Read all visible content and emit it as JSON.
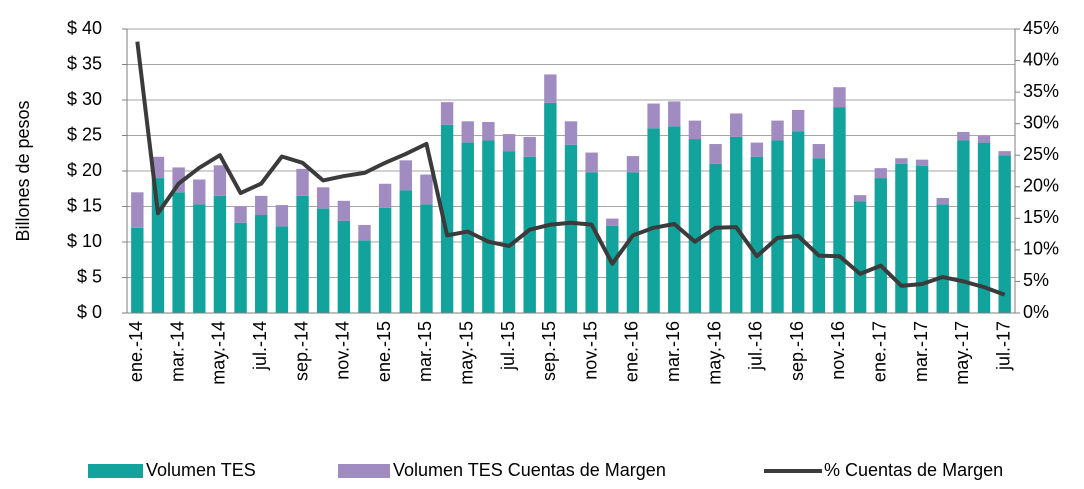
{
  "chart_data": {
    "type": "bar",
    "y_label": "Billones de pesos",
    "categories": [
      "ene.-14",
      null,
      "mar.-14",
      null,
      "may.-14",
      null,
      "jul.-14",
      null,
      "sep.-14",
      null,
      "nov.-14",
      null,
      "ene.-15",
      null,
      "mar.-15",
      null,
      "may.-15",
      null,
      "jul.-15",
      null,
      "sep.-15",
      null,
      "nov.-15",
      null,
      "ene.-16",
      null,
      "mar.-16",
      null,
      "may.-16",
      null,
      "jul.-16",
      null,
      "sep.-16",
      null,
      "nov.-16",
      null,
      "ene.-17",
      null,
      "mar.-17",
      null,
      "may.-17",
      null,
      "jul.-17"
    ],
    "series": [
      {
        "name": "Volumen TES",
        "type": "bar",
        "color": "#12a39c",
        "values": [
          12,
          19,
          17,
          15.3,
          16.5,
          12.7,
          13.8,
          12.2,
          16.5,
          14.7,
          13,
          10.2,
          14.8,
          17.3,
          15.3,
          26.5,
          24,
          24.3,
          22.8,
          22,
          29.6,
          23.7,
          19.8,
          12.3,
          19.8,
          26,
          26.3,
          24.5,
          21,
          24.8,
          22,
          24.3,
          25.6,
          21.8,
          29,
          15.7,
          19,
          21,
          20.7,
          15.3,
          24.3,
          24,
          22.2
        ]
      },
      {
        "name": "Volumen TES Cuentas de Margen",
        "type": "bar",
        "stacked": true,
        "color": "#a18cc1",
        "values": [
          5,
          3,
          3.5,
          3.5,
          4.3,
          2.3,
          2.7,
          3,
          3.8,
          3,
          2.8,
          2.2,
          3.4,
          4.2,
          4.2,
          3.2,
          3,
          2.6,
          2.4,
          2.8,
          4,
          3.3,
          2.8,
          1,
          2.3,
          3.5,
          3.5,
          2.6,
          2.8,
          3.3,
          2,
          2.8,
          3,
          2,
          2.8,
          0.9,
          1.4,
          0.8,
          0.9,
          0.9,
          1.2,
          1,
          0.6
        ]
      },
      {
        "name": "% Cuentas de Margen",
        "type": "line",
        "axis": "y2",
        "color": "#3b3b3b",
        "values": [
          43,
          15.8,
          20.5,
          23,
          25,
          19,
          20.5,
          24.8,
          23.8,
          21,
          21.7,
          22.2,
          23.8,
          25.2,
          26.8,
          12.3,
          12.9,
          11.3,
          10.6,
          13.2,
          14,
          14.3,
          14,
          7.8,
          12.3,
          13.5,
          14.1,
          11.3,
          13.5,
          13.6,
          9,
          11.9,
          12.2,
          9.1,
          9,
          6.2,
          7.5,
          4.3,
          4.6,
          5.7,
          5,
          4.1,
          2.9
        ]
      }
    ],
    "ylim": [
      0,
      40
    ],
    "yticks": [
      {
        "value": 0,
        "label": "$ 0"
      },
      {
        "value": 5,
        "label": "$ 5"
      },
      {
        "value": 10,
        "label": "$ 10"
      },
      {
        "value": 15,
        "label": "$ 15"
      },
      {
        "value": 20,
        "label": "$ 20"
      },
      {
        "value": 25,
        "label": "$ 25"
      },
      {
        "value": 30,
        "label": "$ 30"
      },
      {
        "value": 35,
        "label": "$ 35"
      },
      {
        "value": 40,
        "label": "$ 40"
      }
    ],
    "y2lim": [
      0,
      45
    ],
    "y2ticks": [
      {
        "value": 0,
        "label": "0%"
      },
      {
        "value": 5,
        "label": "5%"
      },
      {
        "value": 10,
        "label": "10%"
      },
      {
        "value": 15,
        "label": "15%"
      },
      {
        "value": 20,
        "label": "20%"
      },
      {
        "value": 25,
        "label": "25%"
      },
      {
        "value": 30,
        "label": "30%"
      },
      {
        "value": 35,
        "label": "35%"
      },
      {
        "value": 40,
        "label": "40%"
      },
      {
        "value": 45,
        "label": "45%"
      }
    ],
    "grid": true,
    "legend": "bottom"
  }
}
